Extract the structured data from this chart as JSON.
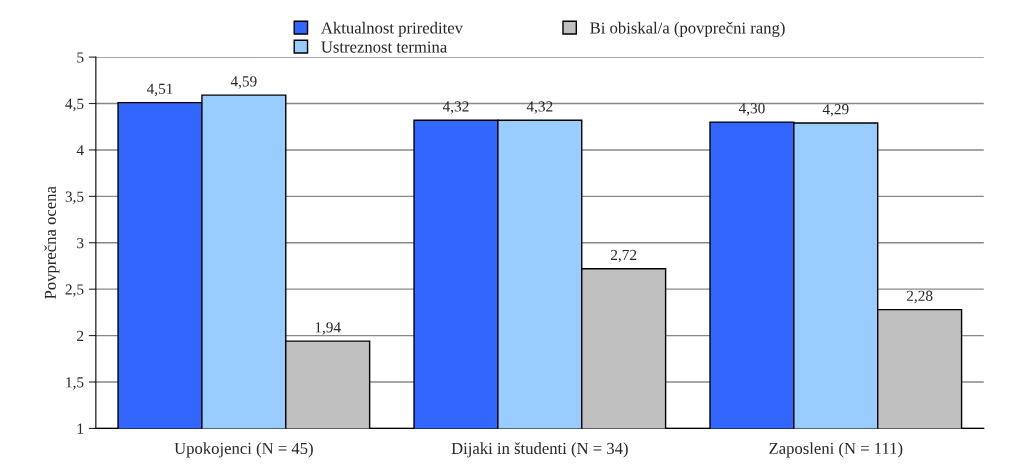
{
  "chart_data": {
    "type": "bar",
    "ylabel": "Povprečna ocena",
    "categories": [
      "Upokojenci (N = 45)",
      "Dijaki in študenti (N = 34)",
      "Zaposleni (N = 111)"
    ],
    "series": [
      {
        "name": "Aktualnost prireditev",
        "color": "#3366ff",
        "values": [
          4.51,
          4.32,
          4.3
        ],
        "value_labels": [
          "4,51",
          "4,32",
          "4,30"
        ]
      },
      {
        "name": "Ustreznost termina",
        "color": "#99ccff",
        "values": [
          4.59,
          4.32,
          4.29
        ],
        "value_labels": [
          "4,59",
          "4,32",
          "4,29"
        ]
      },
      {
        "name": "Bi obiskal/a (povprečni rang)",
        "color": "#c0c0c0",
        "values": [
          1.94,
          2.72,
          2.28
        ],
        "value_labels": [
          "1,94",
          "2,72",
          "2,28"
        ]
      }
    ],
    "ylim": [
      1,
      5
    ],
    "yticks": [
      1,
      {
        "value": 1.5,
        "label": "1,5"
      },
      2,
      {
        "value": 2.5,
        "label": "2,5"
      },
      3,
      {
        "value": 3.5,
        "label": "3,5"
      },
      4,
      {
        "value": 4.5,
        "label": "4,5"
      },
      5
    ],
    "grid": "y",
    "legend": "top"
  }
}
